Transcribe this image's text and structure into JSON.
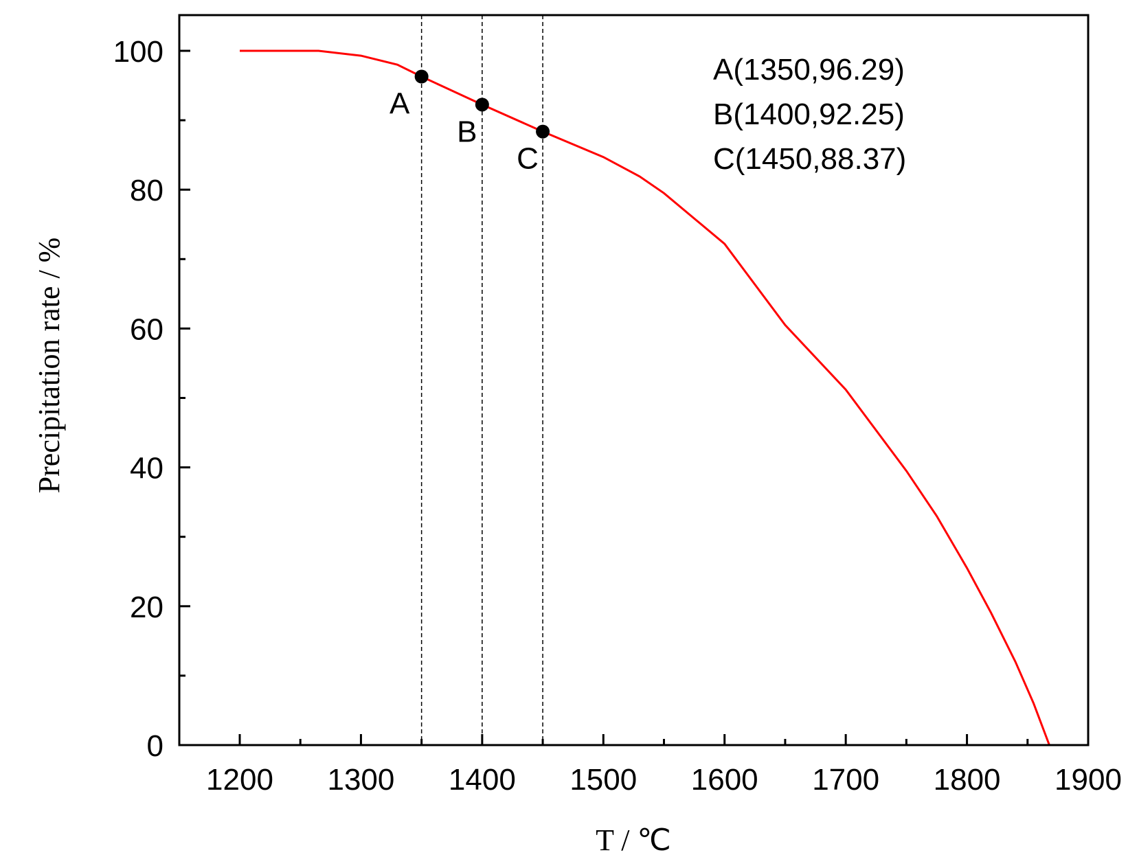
{
  "chart_data": {
    "type": "line",
    "title": "",
    "xlabel": "T / ℃",
    "ylabel": "Precipitation rate / %",
    "xlim": [
      1150,
      1900
    ],
    "ylim": [
      0,
      105
    ],
    "x_ticks": [
      1200,
      1300,
      1400,
      1500,
      1600,
      1700,
      1800,
      1900
    ],
    "y_ticks": [
      0,
      20,
      40,
      60,
      80,
      100
    ],
    "grid": false,
    "series": [
      {
        "color": "#ff0000",
        "x": [
          1200,
          1265,
          1300,
          1330,
          1350,
          1400,
          1450,
          1500,
          1530,
          1550,
          1600,
          1650,
          1700,
          1750,
          1775,
          1800,
          1820,
          1840,
          1855,
          1868,
          1880
        ],
        "y": [
          100,
          100,
          99.3,
          98,
          96.29,
          92.25,
          88.37,
          84.7,
          81.9,
          79.5,
          72.2,
          60.5,
          51.2,
          39.5,
          33,
          25.5,
          19,
          12,
          6,
          0,
          0
        ]
      }
    ],
    "guide_lines": [
      1350,
      1400,
      1450
    ],
    "points": [
      {
        "label": "A",
        "x": 1350,
        "y": 96.29
      },
      {
        "label": "B",
        "x": 1400,
        "y": 92.25
      },
      {
        "label": "C",
        "x": 1450,
        "y": 88.37
      }
    ],
    "annotations": [
      "A(1350,96.29)",
      "B(1400,92.25)",
      "C(1450,88.37)"
    ]
  }
}
